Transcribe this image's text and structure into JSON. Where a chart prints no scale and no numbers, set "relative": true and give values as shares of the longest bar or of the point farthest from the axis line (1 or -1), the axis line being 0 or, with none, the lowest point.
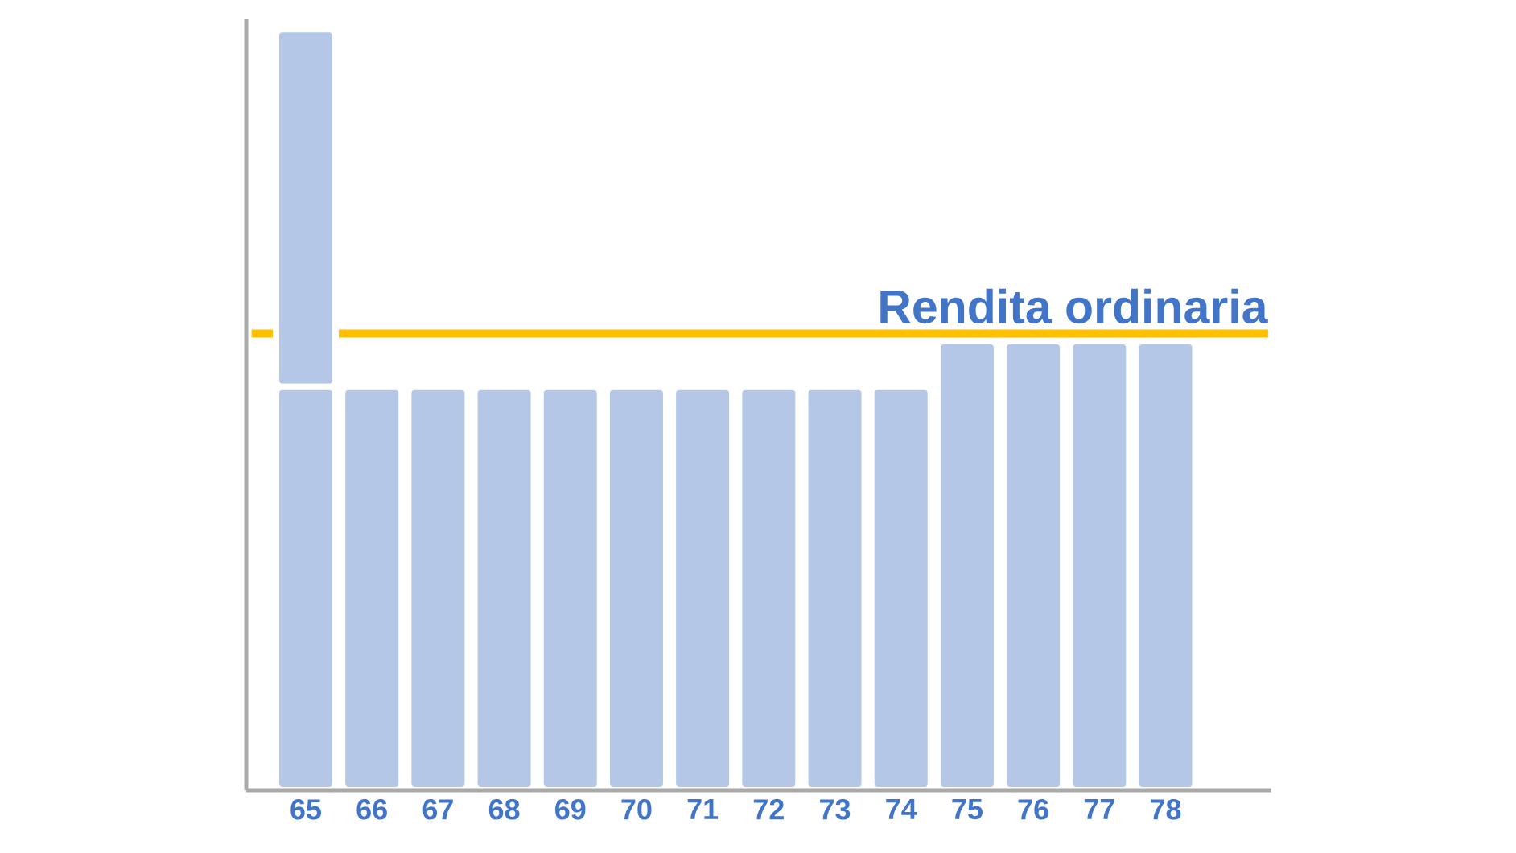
{
  "chart_data": {
    "type": "bar",
    "stacked": true,
    "relative": true,
    "categories": [
      "65",
      "66",
      "67",
      "68",
      "69",
      "70",
      "71",
      "72",
      "73",
      "74",
      "75",
      "76",
      "77",
      "78"
    ],
    "series": [
      {
        "color": "#b4c7e7",
        "values": [
          0.53,
          0.53,
          0.53,
          0.53,
          0.53,
          0.53,
          0.53,
          0.53,
          0.53,
          0.53,
          0.59,
          0.59,
          0.59,
          0.59
        ]
      },
      {
        "color": "#b4c7e7",
        "values": [
          0.47,
          null,
          null,
          null,
          null,
          null,
          null,
          null,
          null,
          null,
          null,
          null,
          null,
          null
        ]
      }
    ],
    "ref_lines": [
      {
        "axis": "y",
        "value": 0.6,
        "label": "Rendita ordinaria",
        "color": "#ffc000"
      }
    ]
  }
}
